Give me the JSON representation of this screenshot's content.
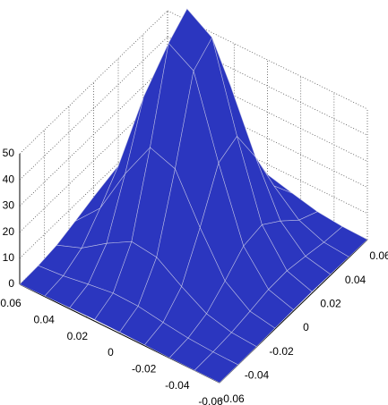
{
  "chart_data": {
    "type": "surface",
    "x": [
      -0.06,
      -0.045,
      -0.03,
      -0.015,
      0,
      0.015,
      0.03,
      0.045,
      0.06
    ],
    "y": [
      -0.06,
      -0.045,
      -0.03,
      -0.015,
      0,
      0.015,
      0.03,
      0.045,
      0.06
    ],
    "z": [
      [
        0.0,
        0.0,
        0.1,
        0.3,
        0.5,
        0.6,
        0.4,
        0.2,
        0.0
      ],
      [
        0.0,
        0.2,
        0.8,
        2.1,
        3.6,
        3.9,
        2.6,
        1.1,
        0.3
      ],
      [
        0.1,
        0.8,
        3.3,
        9.0,
        15.5,
        16.8,
        11.4,
        4.9,
        1.3
      ],
      [
        0.3,
        2.1,
        9.0,
        24.7,
        42.6,
        46.0,
        31.2,
        13.3,
        3.6
      ],
      [
        0.5,
        3.6,
        15.5,
        42.5,
        73.2,
        79.1,
        53.8,
        22.9,
        6.1
      ],
      [
        0.6,
        3.9,
        16.8,
        46.0,
        79.1,
        85.4,
        58.1,
        24.7,
        6.6
      ],
      [
        0.4,
        2.6,
        11.4,
        31.2,
        53.8,
        58.1,
        39.5,
        16.8,
        4.5
      ],
      [
        0.2,
        1.1,
        4.9,
        13.3,
        22.9,
        24.7,
        16.8,
        7.2,
        1.9
      ],
      [
        0.0,
        0.3,
        1.3,
        3.6,
        6.1,
        6.6,
        4.5,
        1.9,
        0.5
      ]
    ],
    "xlim": [
      -0.06,
      0.06
    ],
    "ylim": [
      -0.06,
      0.06
    ],
    "zlim": [
      0,
      50
    ],
    "xticks": [
      -0.06,
      -0.04,
      -0.02,
      0,
      0.02,
      0.04,
      0.06
    ],
    "yticks": [
      -0.06,
      -0.04,
      -0.02,
      0,
      0.02,
      0.04,
      0.06
    ],
    "zticks": [
      0,
      10,
      20,
      30,
      40,
      50
    ],
    "color": "#2b36bf",
    "grid": true
  }
}
